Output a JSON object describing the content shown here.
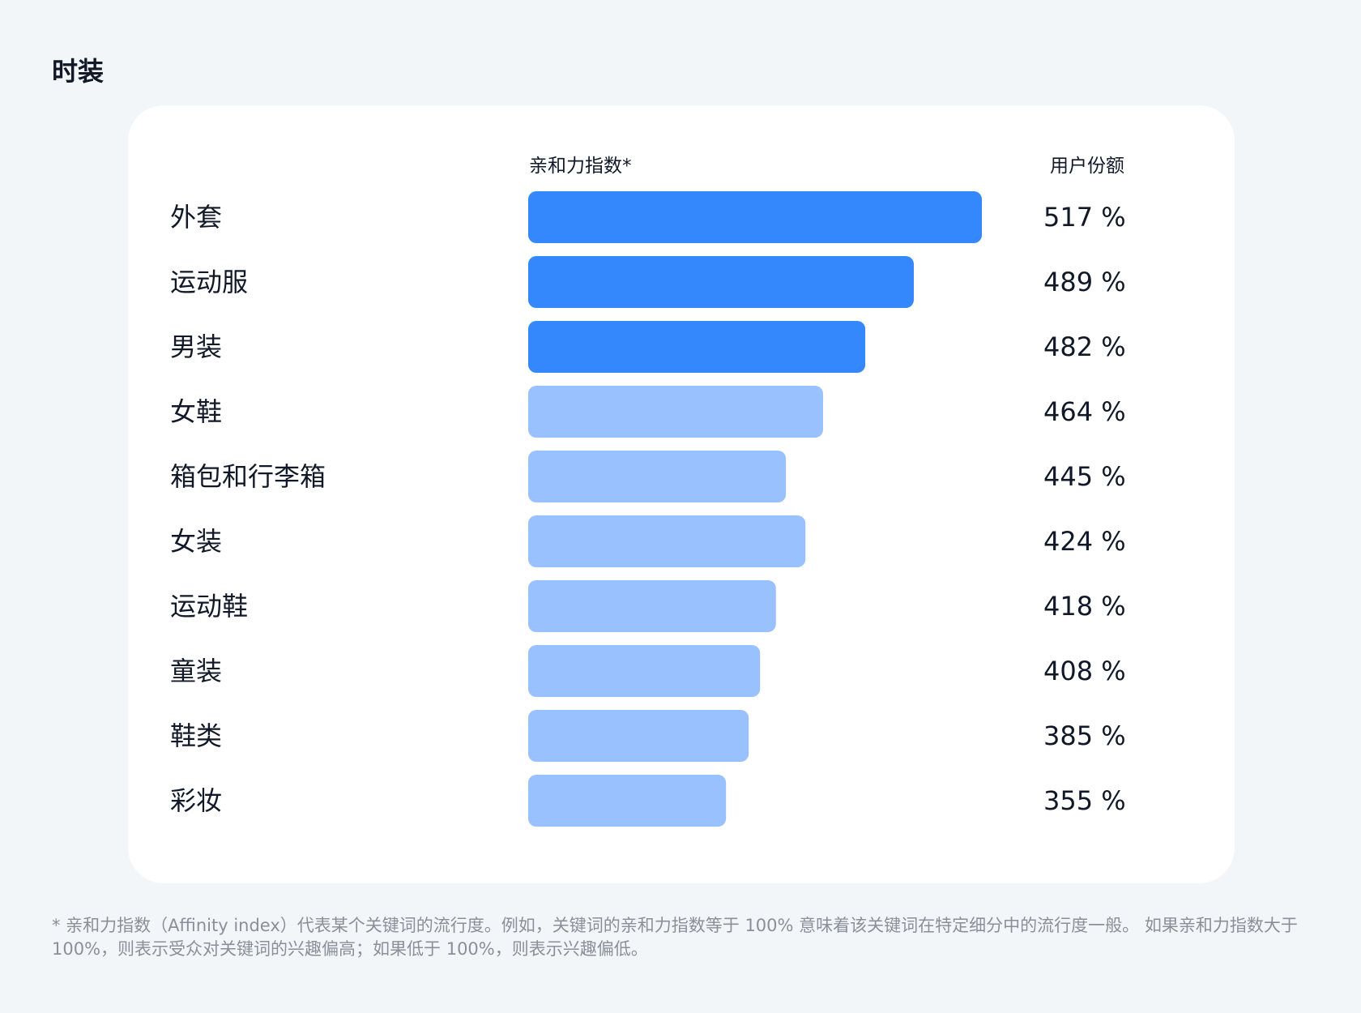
{
  "page": {
    "title": "时装",
    "footnote": "* 亲和力指数（Affinity index）代表某个关键词的流行度。例如，关键词的亲和力指数等于 100% 意味着该关键词在特定细分中的流行度一般。 如果亲和力指数大于 100%，则表示受众对关键词的兴趣偏高；如果低于 100%，则表示兴趣偏低。"
  },
  "colors": {
    "highlight_bar": "#3488fc",
    "normal_bar": "#99c1fd",
    "card_background": "#ffffff",
    "page_background": "#f3f6f9"
  },
  "chart_data": {
    "type": "bar",
    "orientation": "horizontal",
    "index_header": "亲和力指数*",
    "share_header": "用户份额",
    "categories": [
      "外套",
      "运动服",
      "男装",
      "女鞋",
      "箱包和行李箱",
      "女装",
      "运动鞋",
      "童装",
      "鞋类",
      "彩妆"
    ],
    "index_values": [
      517,
      489,
      482,
      464,
      445,
      424,
      418,
      408,
      385,
      355
    ],
    "index_labels": [
      "517 %",
      "489 %",
      "482 %",
      "464 %",
      "445 %",
      "424 %",
      "418 %",
      "408 %",
      "385 %",
      "355 %"
    ],
    "share_fraction": [
      1.0,
      0.85,
      0.743,
      0.65,
      0.568,
      0.611,
      0.546,
      0.511,
      0.486,
      0.436
    ],
    "highlighted": [
      true,
      true,
      true,
      false,
      false,
      false,
      false,
      false,
      false,
      false
    ]
  }
}
